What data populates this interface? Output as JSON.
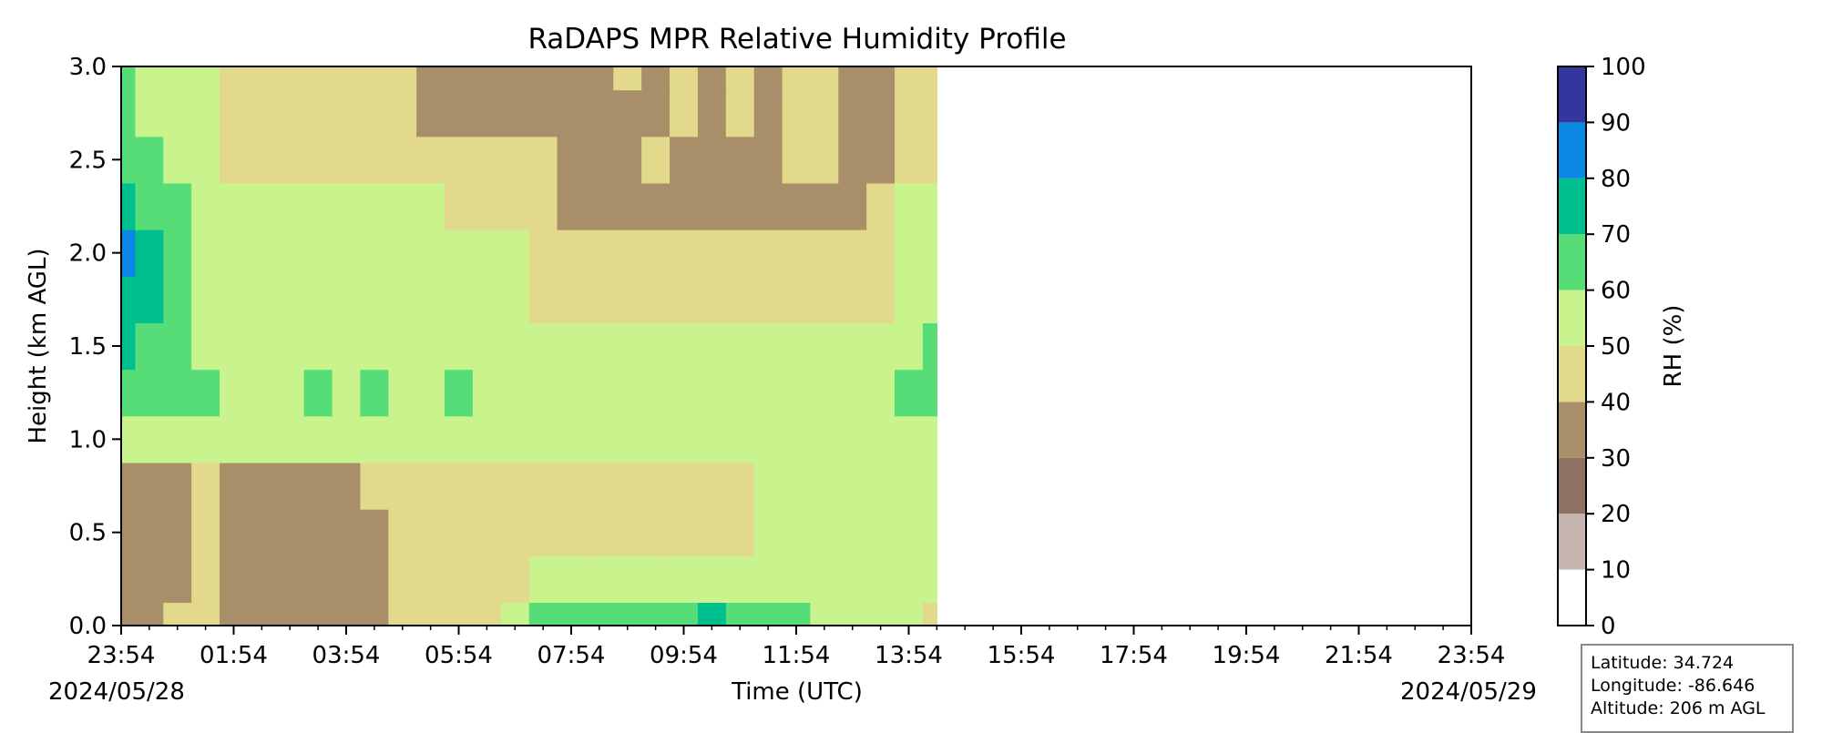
{
  "chart_data": {
    "type": "heatmap",
    "title": "RaDAPS MPR Relative Humidity Profile",
    "xlabel": "Time (UTC)",
    "ylabel": "Height (km AGL)",
    "colorbar_label": "RH (%)",
    "x_ticks": [
      "23:54",
      "01:54",
      "03:54",
      "05:54",
      "07:54",
      "09:54",
      "11:54",
      "13:54",
      "15:54",
      "17:54",
      "19:54",
      "21:54",
      "23:54"
    ],
    "start_date": "2024/05/28",
    "end_date": "2024/05/29",
    "y_ticks": [
      "0.0",
      "0.5",
      "1.0",
      "1.5",
      "2.0",
      "2.5",
      "3.0"
    ],
    "ylim": [
      0,
      3
    ],
    "x_hours_range": [
      0,
      24
    ],
    "data_end_hours": 14.5,
    "colorbar_levels": [
      0,
      10,
      20,
      30,
      40,
      50,
      60,
      70,
      80,
      90,
      100
    ],
    "colorbar_colors": [
      "#ffffff",
      "#c7b6b0",
      "#8f7264",
      "#a88f6a",
      "#e2d98c",
      "#c9f38c",
      "#57dd78",
      "#00bf8f",
      "#0b86e2",
      "#33369e"
    ],
    "colorbar_tick_labels": [
      "0",
      "10",
      "20",
      "30",
      "40",
      "50",
      "60",
      "70",
      "80",
      "90",
      "100"
    ],
    "x_hours": [
      0,
      0.5,
      1,
      1.5,
      2,
      2.5,
      3,
      3.5,
      4,
      4.5,
      5,
      5.5,
      6,
      6.5,
      7,
      7.5,
      8,
      8.5,
      9,
      9.5,
      10,
      10.5,
      11,
      11.5,
      12,
      12.5,
      13,
      13.5,
      14,
      14.5
    ],
    "z_heights_km": [
      0,
      0.25,
      0.5,
      0.75,
      1,
      1.25,
      1.5,
      1.75,
      2,
      2.25,
      2.5,
      2.75,
      3
    ],
    "rh_values": [
      [
        36,
        36,
        45,
        44,
        36,
        36,
        36,
        36,
        36,
        37,
        44,
        45,
        45,
        46,
        52,
        62,
        65,
        65,
        65,
        65,
        68,
        72,
        68,
        64,
        60,
        57,
        56,
        55,
        52,
        48
      ],
      [
        34,
        34,
        36,
        42,
        36,
        36,
        36,
        36,
        36,
        36,
        44,
        45,
        45,
        45,
        47,
        53,
        54,
        55,
        55,
        56,
        57,
        57,
        56,
        55,
        55,
        54,
        54,
        53,
        53,
        53
      ],
      [
        35,
        34,
        35,
        43,
        35,
        34,
        34,
        34,
        36,
        36,
        43,
        45,
        45,
        45,
        45,
        46,
        46,
        46,
        46,
        46,
        46,
        47,
        47,
        53,
        54,
        55,
        55,
        55,
        55,
        53
      ],
      [
        38,
        38,
        37,
        44,
        36,
        35,
        35,
        35,
        36,
        44,
        45,
        45,
        45,
        45,
        45,
        45,
        46,
        46,
        46,
        46,
        46,
        47,
        47,
        53,
        54,
        55,
        55,
        55,
        55,
        53
      ],
      [
        56,
        55,
        55,
        54,
        52,
        51,
        51,
        51,
        51,
        52,
        53,
        53,
        53,
        53,
        53,
        53,
        53,
        52,
        52,
        51,
        51,
        52,
        51,
        53,
        55,
        55,
        55,
        55,
        55,
        55
      ],
      [
        68,
        66,
        65,
        62,
        57,
        57,
        57,
        61,
        58,
        61,
        57,
        59,
        62,
        56,
        56,
        56,
        56,
        56,
        56,
        56,
        56,
        56,
        56,
        56,
        56,
        56,
        56,
        57,
        63,
        64
      ],
      [
        72,
        69,
        66,
        56,
        55,
        55,
        55,
        55,
        55,
        55,
        55,
        55,
        55,
        55,
        55,
        52,
        52,
        52,
        52,
        52,
        52,
        52,
        52,
        52,
        52,
        52,
        52,
        55,
        58,
        60
      ],
      [
        73,
        72,
        64,
        55,
        55,
        55,
        55,
        55,
        55,
        55,
        55,
        55,
        55,
        55,
        55,
        46,
        46,
        46,
        46,
        46,
        46,
        46,
        46,
        46,
        46,
        46,
        46,
        47,
        56,
        55
      ],
      [
        82,
        74,
        66,
        55,
        55,
        55,
        55,
        55,
        55,
        55,
        55,
        55,
        55,
        55,
        55,
        46,
        46,
        45,
        45,
        45,
        46,
        46,
        46,
        46,
        46,
        46,
        46,
        47,
        56,
        55
      ],
      [
        73,
        68,
        62,
        55,
        55,
        54,
        53,
        53,
        53,
        53,
        54,
        55,
        46,
        46,
        46,
        46,
        38,
        38,
        38,
        38,
        38,
        38,
        38,
        38,
        38,
        38,
        38,
        47,
        55,
        52
      ],
      [
        66,
        62,
        57,
        55,
        45,
        45,
        45,
        45,
        45,
        45,
        45,
        45,
        46,
        46,
        45,
        46,
        38,
        38,
        38,
        45,
        38,
        38,
        38,
        38,
        45,
        45,
        38,
        38,
        45,
        45
      ],
      [
        62,
        57,
        56,
        55,
        45,
        45,
        45,
        45,
        45,
        45,
        45,
        38,
        38,
        38,
        38,
        38,
        38,
        38,
        38,
        38,
        45,
        38,
        45,
        38,
        45,
        45,
        38,
        38,
        45,
        45
      ],
      [
        61,
        58,
        56,
        54,
        45,
        45,
        45,
        45,
        45,
        45,
        45,
        38,
        38,
        38,
        38,
        38,
        38,
        38,
        45,
        38,
        45,
        38,
        45,
        38,
        45,
        45,
        38,
        38,
        45,
        45
      ]
    ]
  },
  "station_info": {
    "latitude": "Latitude: 34.724",
    "longitude": "Longitude: -86.646",
    "altitude": "Altitude: 206 m AGL"
  }
}
